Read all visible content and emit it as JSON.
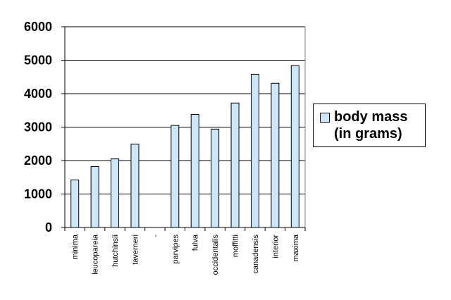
{
  "chart_data": {
    "type": "bar",
    "title": "",
    "xlabel": "",
    "ylabel": "",
    "categories": [
      "minima",
      "leucopareia",
      "hutchinsii",
      "taverneri",
      "-",
      "parvipes",
      "fulva",
      "occidentalis",
      "moffitti",
      "canadensis",
      "interior",
      "maxima"
    ],
    "series": [
      {
        "name": "body mass\n(in grams)",
        "values": [
          1420,
          1820,
          2050,
          2490,
          null,
          3050,
          3380,
          2940,
          3720,
          4580,
          4310,
          4840
        ]
      }
    ],
    "ylim": [
      0,
      6000
    ],
    "yticks": [
      0,
      1000,
      2000,
      3000,
      4000,
      5000,
      6000
    ],
    "grid": true,
    "legend_position": "right",
    "bar_color": "#cce8f8",
    "edge_color": "#000000"
  }
}
